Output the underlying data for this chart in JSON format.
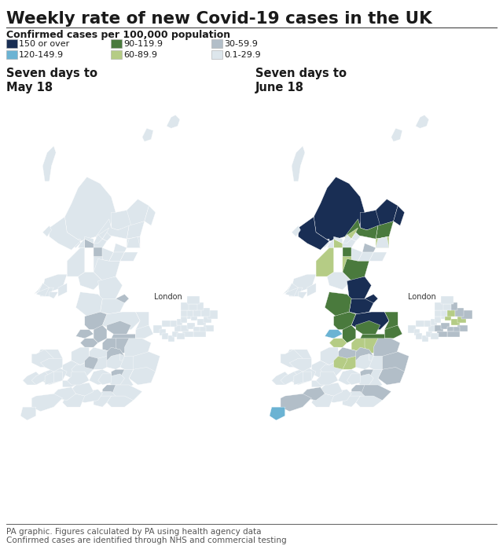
{
  "title": "Weekly rate of new Covid-19 cases in the UK",
  "subtitle": "Confirmed cases per 100,000 population",
  "legend_items": [
    {
      "label": "150 or over",
      "color": "#192e54"
    },
    {
      "label": "120-149.9",
      "color": "#6bb3d3"
    },
    {
      "label": "90-119.9",
      "color": "#4a7a3d"
    },
    {
      "label": "60-89.9",
      "color": "#b5cc85"
    },
    {
      "label": "30-59.9",
      "color": "#b2bec8"
    },
    {
      "label": "0.1-29.9",
      "color": "#dde6ec"
    }
  ],
  "panel1_title": "Seven days to\nMay 18",
  "panel2_title": "Seven days to\nJune 18",
  "london_label": "London",
  "footer_line1": "PA graphic. Figures calculated by PA using health agency data",
  "footer_line2": "Confirmed cases are identified through NHS and commercial testing",
  "bg_color": "#ffffff",
  "title_color": "#1a1a1a",
  "subtitle_color": "#1a1a1a",
  "panel_title_color": "#1a1a1a",
  "footer_color": "#555555",
  "map_default_color": "#dde6ec",
  "map_border_color": "#ffffff",
  "c150": "#192e54",
  "c120": "#6bb3d3",
  "c90": "#4a7a3d",
  "c60": "#b5cc85",
  "c30": "#b2bec8",
  "c01": "#dde6ec",
  "may18_colors": {
    "manchester": "#b2bec8",
    "w_yorkshire": "#b2bec8",
    "s_yorkshire": "#b2bec8",
    "e_yorkshire": "#dde6ec",
    "humberside": "#dde6ec",
    "lancashire": "#b2bec8",
    "merseyside": "#b2bec8",
    "cheshire": "#b2bec8",
    "derbyshire": "#b2bec8",
    "notts": "#b2bec8",
    "w_midlands": "#b2bec8",
    "tyne_wear": "#b2bec8",
    "durham": "#dde6ec",
    "northumberland": "#dde6ec",
    "cumbria": "#dde6ec",
    "lincs": "#dde6ec",
    "staffs": "#dde6ec",
    "warwick": "#dde6ec",
    "leicester": "#b2bec8",
    "glasgow": "#b2bec8",
    "edinburgh": "#dde6ec",
    "n_lanark": "#b2bec8",
    "s_lanark": "#dde6ec",
    "ayrshire": "#dde6ec",
    "cornwall": "#dde6ec",
    "beds": "#b2bec8",
    "london": "#b2bec8"
  },
  "june18_colors": {
    "highland": "#192e54",
    "argyll": "#192e54",
    "n_yorkshire": "#192e54",
    "tyne_wear": "#192e54",
    "northumberland": "#192e54",
    "durham": "#192e54",
    "moray": "#192e54",
    "aberdeenshire": "#192e54",
    "aberdeen": "#192e54",
    "w_yorkshire": "#4a7a3d",
    "s_yorkshire": "#4a7a3d",
    "e_yorkshire": "#4a7a3d",
    "humberside": "#4a7a3d",
    "manchester": "#4a7a3d",
    "lancashire": "#4a7a3d",
    "cumbria": "#4a7a3d",
    "n_lanark": "#4a7a3d",
    "angus": "#4a7a3d",
    "perth": "#4a7a3d",
    "borders": "#4a7a3d",
    "merseyside": "#6bb3d3",
    "cornwall": "#6bb3d3",
    "s_lanark": "#b5cc85",
    "glasgow": "#b5cc85",
    "stirling": "#b5cc85",
    "fife": "#b5cc85",
    "ayrshire": "#b5cc85",
    "notts": "#b5cc85",
    "derbyshire": "#b5cc85",
    "w_midlands": "#b5cc85",
    "warwick": "#b5cc85",
    "cheshire": "#b5cc85",
    "lincs": "#b2bec8",
    "norfolk": "#b2bec8",
    "suffolk": "#b2bec8",
    "staffs": "#b2bec8",
    "leicester": "#b2bec8",
    "london": "#b2bec8",
    "kent": "#b2bec8",
    "devon": "#b2bec8",
    "somerset": "#b2bec8",
    "edinburgh": "#b2bec8",
    "beds": "#b2bec8"
  },
  "june18_london_colors": {
    "hackney": "#b5cc85",
    "tower": "#b5cc85",
    "newham": "#b5cc85",
    "barking": "#b5cc85",
    "waltham": "#b2bec8",
    "redbridge": "#b2bec8",
    "havering": "#b2bec8",
    "bexley": "#b2bec8",
    "greenwich": "#b2bec8",
    "lewisham": "#b2bec8",
    "southwark": "#b2bec8",
    "lambeth": "#b2bec8",
    "croydon": "#b2bec8",
    "bromley": "#b2bec8"
  }
}
